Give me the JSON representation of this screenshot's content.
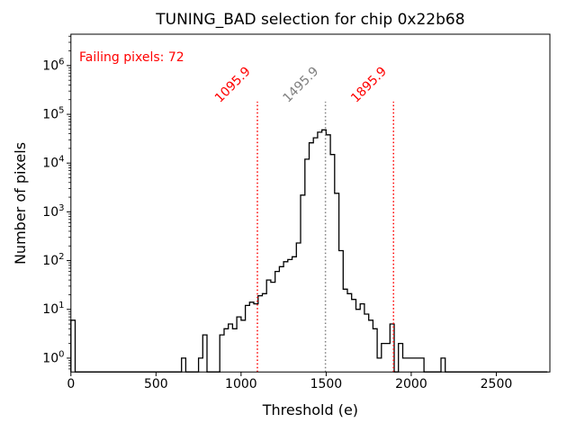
{
  "figure": {
    "title": "TUNING_BAD selection for chip 0x22b68",
    "xlabel": "Threshold (e)",
    "ylabel": "Number of pixels",
    "annotation": {
      "text": "Failing pixels: 72",
      "color": "#ff0000"
    },
    "background": "#ffffff",
    "line_color": "#000000"
  },
  "chart_data": {
    "type": "bar",
    "subtype": "step-histogram",
    "title": "TUNING_BAD selection for chip 0x22b68",
    "xlabel": "Threshold (e)",
    "ylabel": "Number of pixels",
    "yscale": "log",
    "grid": false,
    "bin_width": 25,
    "hist_range": [
      0,
      2800
    ],
    "xlim": [
      0,
      2815
    ],
    "ylim": [
      0.52,
      4400000
    ],
    "x_ticks": [
      0,
      500,
      1000,
      1500,
      2000,
      2500
    ],
    "y_tick_exponents": [
      0,
      1,
      2,
      3,
      4,
      5,
      6
    ],
    "bins": [
      [
        0,
        6
      ],
      [
        650,
        1
      ],
      [
        750,
        1
      ],
      [
        775,
        3
      ],
      [
        875,
        3
      ],
      [
        900,
        4
      ],
      [
        925,
        5
      ],
      [
        950,
        4
      ],
      [
        975,
        7
      ],
      [
        1000,
        6
      ],
      [
        1025,
        12
      ],
      [
        1050,
        14
      ],
      [
        1075,
        13
      ],
      [
        1100,
        19
      ],
      [
        1125,
        21
      ],
      [
        1150,
        40
      ],
      [
        1175,
        36
      ],
      [
        1200,
        60
      ],
      [
        1225,
        75
      ],
      [
        1250,
        95
      ],
      [
        1275,
        105
      ],
      [
        1300,
        120
      ],
      [
        1325,
        230
      ],
      [
        1350,
        2200
      ],
      [
        1375,
        12000
      ],
      [
        1400,
        26000
      ],
      [
        1425,
        33000
      ],
      [
        1450,
        43000
      ],
      [
        1475,
        48000
      ],
      [
        1500,
        38000
      ],
      [
        1525,
        15000
      ],
      [
        1550,
        2400
      ],
      [
        1575,
        160
      ],
      [
        1600,
        26
      ],
      [
        1625,
        21
      ],
      [
        1650,
        16
      ],
      [
        1675,
        10
      ],
      [
        1700,
        13
      ],
      [
        1725,
        8
      ],
      [
        1750,
        6
      ],
      [
        1775,
        4
      ],
      [
        1800,
        1
      ],
      [
        1825,
        2
      ],
      [
        1850,
        2
      ],
      [
        1875,
        5
      ],
      [
        1925,
        2
      ],
      [
        1950,
        1
      ],
      [
        1975,
        1
      ],
      [
        2000,
        1
      ],
      [
        2025,
        1
      ],
      [
        2050,
        1
      ],
      [
        2175,
        1
      ]
    ],
    "vlines": [
      {
        "x": 1095.9,
        "label": "1095.9",
        "color": "#ff0000",
        "style": "dotted"
      },
      {
        "x": 1495.9,
        "label": "1495.9",
        "color": "#7f7f7f",
        "style": "dotted"
      },
      {
        "x": 1895.9,
        "label": "1895.9",
        "color": "#ff0000",
        "style": "dotted"
      }
    ],
    "vline_ymax_fraction": 0.8,
    "annotation": {
      "text": "Failing pixels: 72",
      "color": "#ff0000"
    },
    "legend": null
  }
}
